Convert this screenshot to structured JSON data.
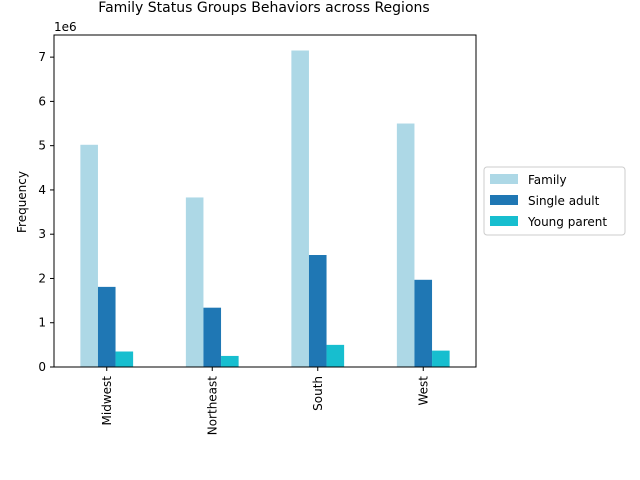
{
  "chart_data": {
    "type": "bar",
    "title": "Family Status Groups Behaviors across Regions",
    "xlabel": "",
    "ylabel": "Frequency",
    "offset_label": "1e6",
    "categories": [
      "Midwest",
      "Northeast",
      "South",
      "West"
    ],
    "series": [
      {
        "name": "Family",
        "color": "#add8e6",
        "values": [
          5020000,
          3830000,
          7150000,
          5500000
        ]
      },
      {
        "name": "Single adult",
        "color": "#1f77b4",
        "values": [
          1810000,
          1340000,
          2530000,
          1970000
        ]
      },
      {
        "name": "Young parent",
        "color": "#17becf",
        "values": [
          350000,
          250000,
          500000,
          370000
        ]
      }
    ],
    "ylim": [
      0,
      7500000
    ],
    "yticks": [
      0,
      1000000,
      2000000,
      3000000,
      4000000,
      5000000,
      6000000,
      7000000
    ],
    "ytick_labels": [
      "0",
      "1",
      "2",
      "3",
      "4",
      "5",
      "6",
      "7"
    ],
    "grid": false,
    "legend_position": "center-right"
  }
}
